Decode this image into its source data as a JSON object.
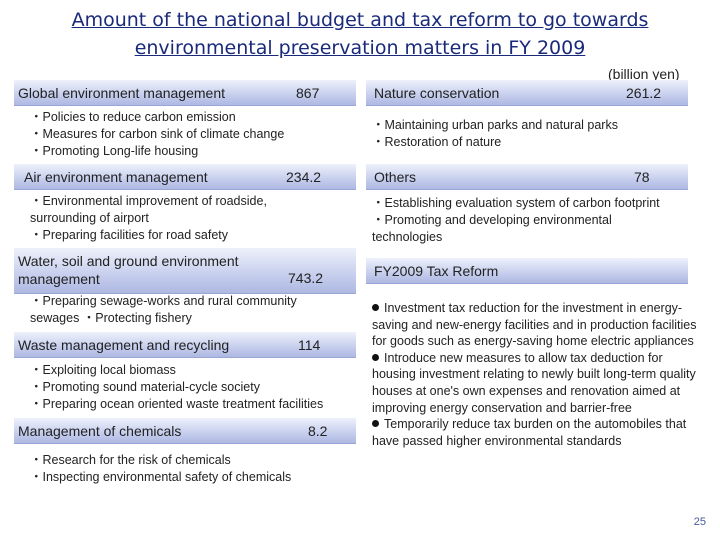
{
  "title": "Amount of the national budget and tax reform to go towards environmental preservation matters in FY 2009",
  "unit": "(billion yen)",
  "left": {
    "global": {
      "label": "Global environment management",
      "value": "867",
      "items": [
        "・Policies to reduce carbon emission",
        "・Measures for carbon sink of climate change",
        "・Promoting Long-life housing"
      ]
    },
    "air": {
      "label": "Air environment management",
      "value": "234.2",
      "items": [
        "・Environmental improvement of roadside,",
        "surrounding of airport",
        "・Preparing facilities for road safety"
      ]
    },
    "water": {
      "label": "Water, soil and ground  environment management",
      "value": "743.2",
      "items": [
        "・Preparing sewage-works and rural community",
        "sewages  ・Protecting fishery"
      ]
    },
    "waste": {
      "label": "Waste management and recycling",
      "value": "114",
      "items": [
        "・Exploiting local biomass",
        "・Promoting sound material-cycle society",
        "・Preparing ocean oriented waste treatment facilities"
      ]
    },
    "chemicals": {
      "label": "Management of chemicals",
      "value": "8.2",
      "items": [
        "・Research for the risk of chemicals",
        "・Inspecting environmental safety of chemicals"
      ]
    }
  },
  "right": {
    "nature": {
      "label": "Nature conservation",
      "value": "261.2",
      "items": [
        "・Maintaining  urban parks and natural parks",
        "・Restoration of nature"
      ]
    },
    "others": {
      "label": "Others",
      "value": "78",
      "items": [
        "・Establishing evaluation system of carbon footprint",
        "・Promoting and developing environmental",
        "technologies"
      ]
    },
    "tax": {
      "label": "FY2009 Tax Reform",
      "items": [
        "Investment tax reduction for the investment in energy-saving and new-energy facilities and in production facilities for goods such as energy-saving home electric appliances",
        "Introduce new measures to allow tax deduction for housing investment relating to newly built long-term quality houses at one's own expenses and renovation aimed at improving energy conservation and barrier-free",
        "Temporarily reduce tax burden on the automobiles that have passed higher environmental standards"
      ]
    }
  },
  "page_number": "25"
}
